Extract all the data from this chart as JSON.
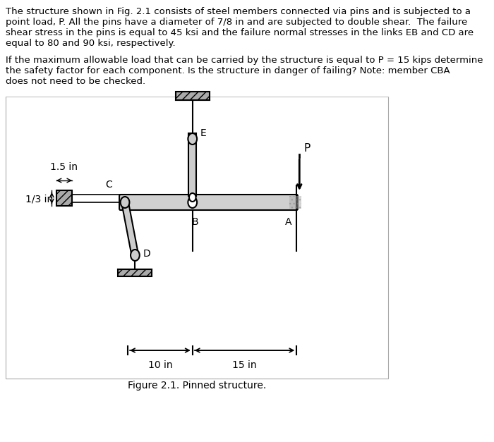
{
  "text_block1": "The structure shown in Fig. 2.1 consists of steel members connected via pins and is subjected to a\npoint load, P. All the pins have a diameter of 7/8 in and are subjected to double shear.  The failure\nshear stress in the pins is equal to 45 ksi and the failure normal stresses in the links EB and CD are\nequal to 80 and 90 ksi, respectively.",
  "text_block2": "If the maximum allowable load that can be carried by the structure is equal to P = 15 kips determine\nthe safety factor for each component. Is the structure in danger of failing? Note: member CBA\ndoes not need to be checked.",
  "caption": "Figure 2.1. Pinned structure.",
  "label_15in": "1.5 in",
  "label_13in": "1/3 in",
  "label_10in": "10 in",
  "label_15in_dim": "15 in",
  "label_E": "E",
  "label_C": "C",
  "label_D": "D",
  "label_B": "B",
  "label_A": "A",
  "label_P": "P",
  "bg_color": "#ffffff",
  "line_color": "#000000",
  "hatch_color": "#555555",
  "text_color": "#000000",
  "font_size_text": 9.5,
  "font_size_label": 10,
  "font_size_caption": 10
}
